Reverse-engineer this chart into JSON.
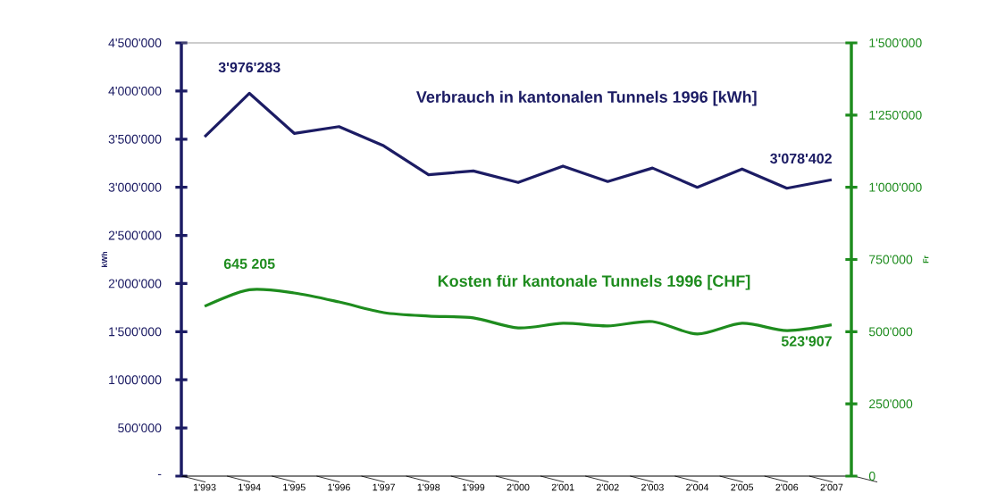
{
  "chart_data": {
    "type": "line",
    "categories": [
      "1'993",
      "1'994",
      "1'995",
      "1'996",
      "1'997",
      "1'998",
      "1'999",
      "2'000",
      "2'001",
      "2'002",
      "2'003",
      "2'004",
      "2'005",
      "2'006",
      "2'007"
    ],
    "series": [
      {
        "name": "Verbrauch in kantonalen Tunnels 1996 [kWh]",
        "color": "#1c1c64",
        "values": [
          3525000,
          3976283,
          3560000,
          3630000,
          3430000,
          3130000,
          3170000,
          3050000,
          3220000,
          3060000,
          3200000,
          3000000,
          3190000,
          2990000,
          3078402
        ],
        "value_labels": [
          null,
          "3'976'283",
          null,
          null,
          null,
          null,
          null,
          null,
          null,
          null,
          null,
          null,
          null,
          null,
          "3'078'402"
        ]
      },
      {
        "name": "Kosten für kantonale Tunnels 1996 [CHF]",
        "color": "#1e8c1e",
        "axis": "y2",
        "values": [
          588000,
          645205,
          634000,
          603000,
          566000,
          554000,
          548000,
          513000,
          529000,
          520000,
          535000,
          492000,
          529000,
          504000,
          523907
        ],
        "value_labels": [
          null,
          "645 205",
          null,
          null,
          null,
          null,
          null,
          null,
          null,
          null,
          null,
          null,
          null,
          null,
          "523'907"
        ]
      }
    ],
    "ylabel": "kWh",
    "y2label": "Fr",
    "ylim": [
      0,
      4500000
    ],
    "yticks": [
      {
        "value": 0,
        "label": "-"
      },
      {
        "value": 500000,
        "label": "500'000"
      },
      {
        "value": 1000000,
        "label": "1'000'000"
      },
      {
        "value": 1500000,
        "label": "1'500'000"
      },
      {
        "value": 2000000,
        "label": "2'000'000"
      },
      {
        "value": 2500000,
        "label": "2'500'000"
      },
      {
        "value": 3000000,
        "label": "3'000'000"
      },
      {
        "value": 3500000,
        "label": "3'500'000"
      },
      {
        "value": 4000000,
        "label": "4'000'000"
      },
      {
        "value": 4500000,
        "label": "4'500'000"
      }
    ],
    "y2lim": [
      0,
      1500000
    ],
    "y2ticks": [
      0,
      {
        "value": 250000,
        "label": "250'000"
      },
      {
        "value": 500000,
        "label": "500'000"
      },
      {
        "value": 750000,
        "label": "750'000"
      },
      {
        "value": 1000000,
        "label": "1'000'000"
      },
      {
        "value": 1250000,
        "label": "1'250'000"
      },
      {
        "value": 1500000,
        "label": "1'500'000"
      }
    ],
    "grid": false,
    "marker": "none",
    "line_style": "solid"
  }
}
